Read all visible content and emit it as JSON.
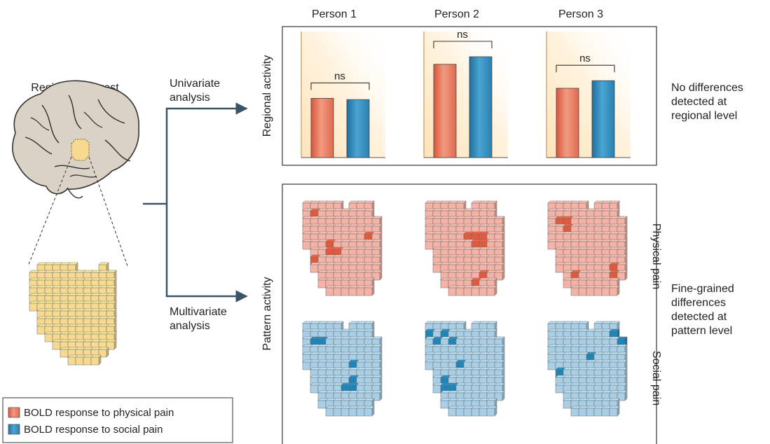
{
  "persons": [
    "Person 1",
    "Person 2",
    "Person 3"
  ],
  "roi": {
    "title": "Region of interest"
  },
  "analysis": {
    "univariate": [
      "Univariate",
      "analysis"
    ],
    "multivariate": [
      "Multivariate",
      "analysis"
    ]
  },
  "regional": {
    "ylabel": "Regional activity",
    "significance": "ns",
    "bars": [
      {
        "physical": 0.47,
        "social": 0.46
      },
      {
        "physical": 0.74,
        "social": 0.8
      },
      {
        "physical": 0.55,
        "social": 0.61
      }
    ],
    "note": [
      "No differences",
      "detected at",
      "regional level"
    ]
  },
  "pattern": {
    "ylabel": "Pattern activity",
    "row_labels": [
      "Physical pain",
      "Social pain"
    ],
    "note": [
      "Fine-grained",
      "differences",
      "detected at",
      "pattern level"
    ]
  },
  "legend": [
    {
      "label": "BOLD response to physical pain",
      "color": "#e8735a"
    },
    {
      "label": "BOLD response to social pain",
      "color": "#2f86b5"
    }
  ],
  "colors": {
    "physical": "#e8735a",
    "social": "#2f86b5",
    "roi_fill": "#f7d98f",
    "brain": "#d9d2c5",
    "arrow": "#3c5566"
  }
}
